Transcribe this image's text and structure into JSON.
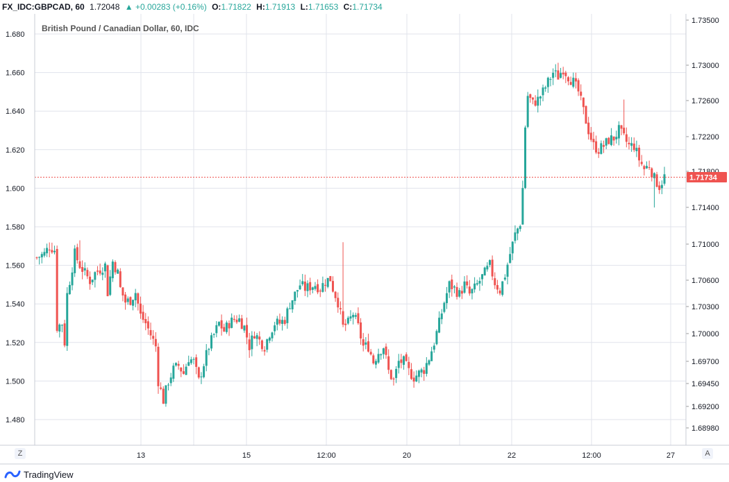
{
  "header": {
    "symbol": "FX_IDC:GBPCAD, 60",
    "last": "1.72048",
    "change": "+0.00283 (+0.16%)",
    "o_label": "O:",
    "o_value": "1.71822",
    "h_label": "H:",
    "h_value": "1.71913",
    "l_label": "L:",
    "l_value": "1.71653",
    "c_label": "C:",
    "c_value": "1.71734",
    "up_arrow_icon": "triangle-up-icon"
  },
  "footer": {
    "z_button": "Z",
    "a_button": "A",
    "brand": "TradingView",
    "brand_icon": "tradingview-logo-icon"
  },
  "colors": {
    "up": "#26a69a",
    "down": "#ef5350",
    "grid": "#e0e3eb",
    "price_line": "#ef5350",
    "price_tag_bg": "#ef5350"
  },
  "chart_data": {
    "type": "candlestick",
    "title": "British Pound / Canadian Dollar, 60, IDC",
    "left_axis": {
      "ticks": [
        "1.680",
        "1.660",
        "1.640",
        "1.620",
        "1.600",
        "1.580",
        "1.560",
        "1.540",
        "1.520",
        "1.500",
        "1.480"
      ],
      "range": [
        1.47,
        1.685
      ]
    },
    "right_axis": {
      "ticks": [
        "1.73500",
        "1.73000",
        "1.72600",
        "1.72200",
        "1.71800",
        "1.71400",
        "1.71000",
        "1.70600",
        "1.70300",
        "1.70000",
        "1.69700",
        "1.69450",
        "1.69200",
        "1.68980"
      ],
      "current_price": "1.71734",
      "current_price_value": 1.6057
    },
    "x_axis": {
      "ticks": [
        "13",
        "15",
        "12:00",
        "20",
        "22",
        "12:00",
        "27"
      ]
    },
    "close_path": [
      [
        0,
        1.564
      ],
      [
        3,
        1.566
      ],
      [
        5,
        1.57
      ],
      [
        7,
        1.568
      ],
      [
        8,
        1.528
      ],
      [
        10,
        1.53
      ],
      [
        11,
        1.52
      ],
      [
        12,
        1.545
      ],
      [
        15,
        1.566
      ],
      [
        17,
        1.56
      ],
      [
        19,
        1.556
      ],
      [
        21,
        1.552
      ],
      [
        23,
        1.556
      ],
      [
        25,
        1.558
      ],
      [
        27,
        1.56
      ],
      [
        28,
        1.546
      ],
      [
        30,
        1.562
      ],
      [
        32,
        1.556
      ],
      [
        33,
        1.548
      ],
      [
        35,
        1.541
      ],
      [
        37,
        1.542
      ],
      [
        39,
        1.546
      ],
      [
        41,
        1.534
      ],
      [
        43,
        1.53
      ],
      [
        45,
        1.524
      ],
      [
        47,
        1.518
      ],
      [
        48,
        1.5
      ],
      [
        50,
        1.49
      ],
      [
        52,
        1.5
      ],
      [
        54,
        1.506
      ],
      [
        56,
        1.508
      ],
      [
        58,
        1.504
      ],
      [
        60,
        1.512
      ],
      [
        62,
        1.51
      ],
      [
        64,
        1.5
      ],
      [
        66,
        1.509
      ],
      [
        68,
        1.518
      ],
      [
        70,
        1.524
      ],
      [
        72,
        1.53
      ],
      [
        74,
        1.526
      ],
      [
        76,
        1.53
      ],
      [
        78,
        1.532
      ],
      [
        80,
        1.532
      ],
      [
        82,
        1.528
      ],
      [
        84,
        1.518
      ],
      [
        86,
        1.525
      ],
      [
        88,
        1.521
      ],
      [
        90,
        1.518
      ],
      [
        92,
        1.525
      ],
      [
        94,
        1.53
      ],
      [
        96,
        1.53
      ],
      [
        98,
        1.532
      ],
      [
        100,
        1.54
      ],
      [
        102,
        1.545
      ],
      [
        104,
        1.55
      ],
      [
        106,
        1.548
      ],
      [
        108,
        1.549
      ],
      [
        110,
        1.55
      ],
      [
        112,
        1.548
      ],
      [
        114,
        1.552
      ],
      [
        116,
        1.553
      ],
      [
        117,
        1.548
      ],
      [
        119,
        1.541
      ],
      [
        121,
        1.528
      ],
      [
        123,
        1.53
      ],
      [
        125,
        1.535
      ],
      [
        127,
        1.528
      ],
      [
        129,
        1.518
      ],
      [
        131,
        1.518
      ],
      [
        133,
        1.51
      ],
      [
        135,
        1.515
      ],
      [
        137,
        1.518
      ],
      [
        139,
        1.505
      ],
      [
        141,
        1.5
      ],
      [
        143,
        1.51
      ],
      [
        145,
        1.51
      ],
      [
        147,
        1.505
      ],
      [
        149,
        1.502
      ],
      [
        151,
        1.504
      ],
      [
        153,
        1.506
      ],
      [
        155,
        1.512
      ],
      [
        157,
        1.52
      ],
      [
        159,
        1.53
      ],
      [
        161,
        1.541
      ],
      [
        163,
        1.55
      ],
      [
        165,
        1.548
      ],
      [
        167,
        1.545
      ],
      [
        169,
        1.55
      ],
      [
        171,
        1.545
      ],
      [
        173,
        1.548
      ],
      [
        175,
        1.552
      ],
      [
        177,
        1.556
      ],
      [
        179,
        1.56
      ],
      [
        181,
        1.551
      ],
      [
        183,
        1.547
      ],
      [
        185,
        1.555
      ],
      [
        187,
        1.566
      ],
      [
        189,
        1.576
      ],
      [
        191,
        1.582
      ],
      [
        192,
        1.6
      ],
      [
        193,
        1.632
      ],
      [
        194,
        1.648
      ],
      [
        196,
        1.644
      ],
      [
        198,
        1.646
      ],
      [
        200,
        1.65
      ],
      [
        202,
        1.655
      ],
      [
        204,
        1.66
      ],
      [
        206,
        1.658
      ],
      [
        208,
        1.662
      ],
      [
        210,
        1.658
      ],
      [
        212,
        1.655
      ],
      [
        214,
        1.65
      ],
      [
        216,
        1.64
      ],
      [
        218,
        1.63
      ],
      [
        220,
        1.622
      ],
      [
        222,
        1.62
      ],
      [
        224,
        1.622
      ],
      [
        226,
        1.625
      ],
      [
        228,
        1.626
      ],
      [
        230,
        1.63
      ],
      [
        232,
        1.626
      ],
      [
        234,
        1.622
      ],
      [
        236,
        1.622
      ],
      [
        238,
        1.615
      ],
      [
        240,
        1.61
      ],
      [
        242,
        1.612
      ],
      [
        244,
        1.605
      ],
      [
        246,
        1.601
      ],
      [
        248,
        1.606
      ]
    ],
    "spikes": [
      [
        17,
        1.573
      ],
      [
        121,
        1.572
      ],
      [
        232,
        1.646
      ],
      [
        244,
        1.59
      ]
    ],
    "num_bars": 249
  }
}
